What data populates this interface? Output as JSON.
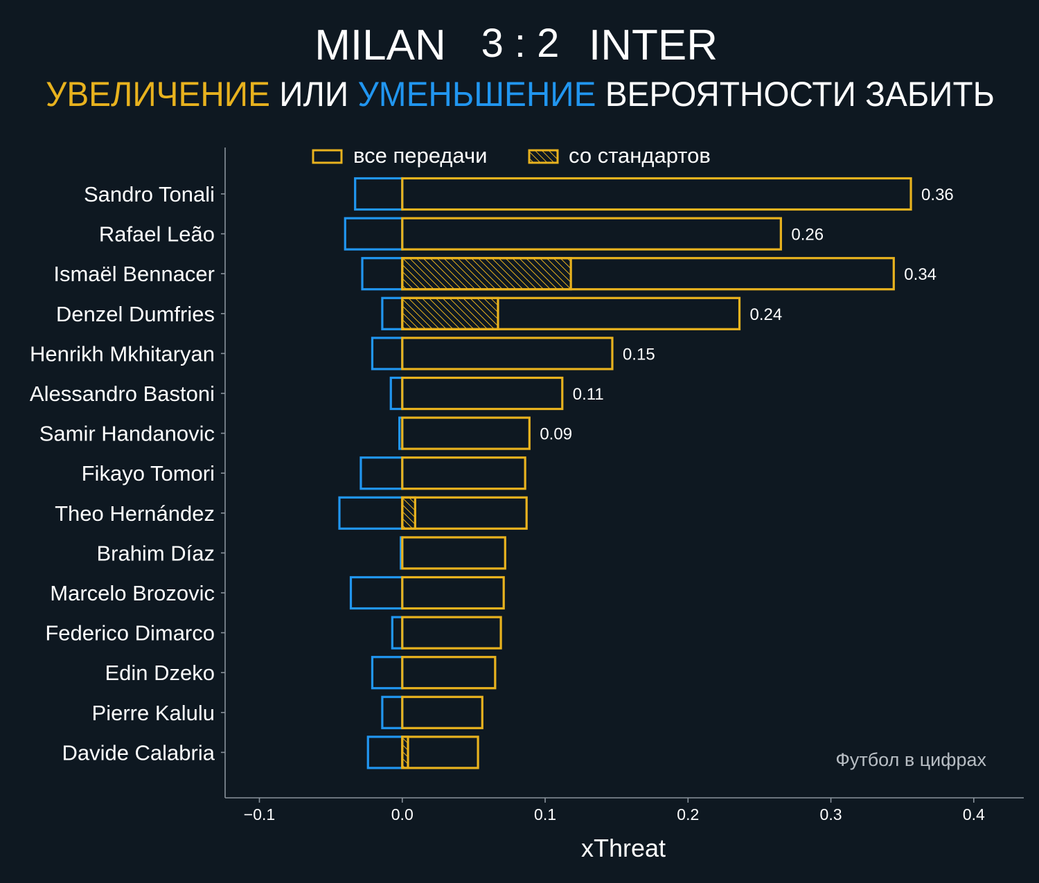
{
  "header": {
    "home_team": "MILAN",
    "score": "3 : 2",
    "away_team": "INTER",
    "subtitle_part1": "УВЕЛИЧЕНИЕ",
    "subtitle_part2": " ИЛИ ",
    "subtitle_part3": "УМЕНЬШЕНИЕ",
    "subtitle_part4": " ВЕРОЯТНОСТИ ЗАБИТЬ"
  },
  "colors": {
    "background": "#0e1821",
    "positive": "#e8b21e",
    "negative": "#2196f0",
    "axis": "#8a939c",
    "watermark": "#b8bec4"
  },
  "legend": {
    "all_passes": "все передачи",
    "set_pieces": "со стандартов"
  },
  "watermark": "Футбол в цифрах",
  "chart_data": {
    "type": "bar",
    "orientation": "horizontal",
    "xlabel": "xThreat",
    "ylabel": "",
    "xlim": [
      -0.124,
      0.435
    ],
    "x_ticks": [
      -0.1,
      0.0,
      0.1,
      0.2,
      0.3,
      0.4
    ],
    "x_tick_labels": [
      "−0.1",
      "0.0",
      "0.1",
      "0.2",
      "0.3",
      "0.4"
    ],
    "grid": false,
    "legend_position": "top",
    "categories": [
      "Sandro Tonali",
      "Rafael Leão",
      "Ismaël Bennacer",
      "Denzel Dumfries",
      "Henrikh Mkhitaryan",
      "Alessandro Bastoni",
      "Samir Handanovic",
      "Fikayo Tomori",
      "Theo Hernández",
      "Brahim Díaz",
      "Marcelo Brozovic",
      "Federico Dimarco",
      "Edin Dzeko",
      "Pierre Kalulu",
      "Davide Calabria"
    ],
    "series": [
      {
        "name": "все передачи",
        "positive": [
          0.356,
          0.265,
          0.344,
          0.236,
          0.147,
          0.112,
          0.089,
          0.086,
          0.087,
          0.072,
          0.071,
          0.069,
          0.065,
          0.056,
          0.053
        ],
        "negative": [
          -0.033,
          -0.04,
          -0.028,
          -0.014,
          -0.021,
          -0.008,
          -0.002,
          -0.029,
          -0.044,
          -0.001,
          -0.036,
          -0.007,
          -0.021,
          -0.014,
          -0.024
        ]
      },
      {
        "name": "со стандартов",
        "positive": [
          0,
          0,
          0.118,
          0.067,
          0,
          0,
          0,
          0,
          0.009,
          0,
          0,
          0,
          0,
          0,
          0.004
        ]
      }
    ],
    "value_labels": [
      "0.36",
      "0.26",
      "0.34",
      "0.24",
      "0.15",
      "0.11",
      "0.09",
      "",
      "",
      "",
      "",
      "",
      "",
      "",
      ""
    ]
  }
}
